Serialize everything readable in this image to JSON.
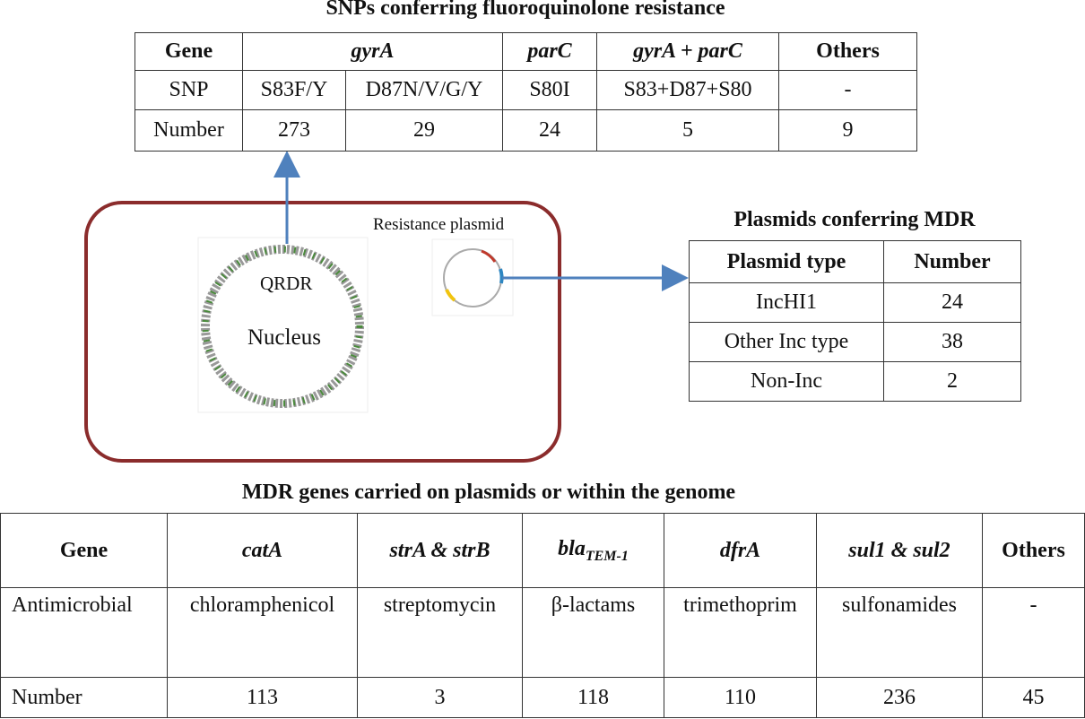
{
  "snp_table": {
    "title": "SNPs conferring fluoroquinolone resistance",
    "header": [
      "Gene",
      "gyrA",
      "parC",
      "gyrA + parC",
      "Others"
    ],
    "rows": [
      [
        "SNP",
        "S83F/Y",
        "D87N/V/G/Y",
        "S80I",
        "S83+D87+S80",
        "-"
      ],
      [
        "Number",
        273,
        29,
        24,
        5,
        9
      ]
    ]
  },
  "cell": {
    "plasmid_label": "Resistance plasmid",
    "qrdr": "QRDR",
    "nucleus": "Nucleus"
  },
  "plasmid_table": {
    "title": "Plasmids conferring MDR",
    "header": [
      "Plasmid type",
      "Number"
    ],
    "rows": [
      [
        "IncHI1",
        24
      ],
      [
        "Other Inc type",
        38
      ],
      [
        "Non-Inc",
        2
      ]
    ]
  },
  "mdr_table": {
    "title": "MDR genes carried on plasmids or within the genome",
    "header": [
      "Gene",
      "catA",
      "strA & strB",
      {
        "text": "bla",
        "sub": "TEM-1"
      },
      "dfrA",
      "sul1 & sul2",
      "Others"
    ],
    "rows": [
      [
        "Antimicrobial",
        "chloramphenicol",
        "streptomycin",
        "β-lactams",
        "trimethoprim",
        "sulfonamides",
        "-"
      ],
      [
        "Number",
        113,
        3,
        118,
        110,
        236,
        45
      ]
    ]
  }
}
